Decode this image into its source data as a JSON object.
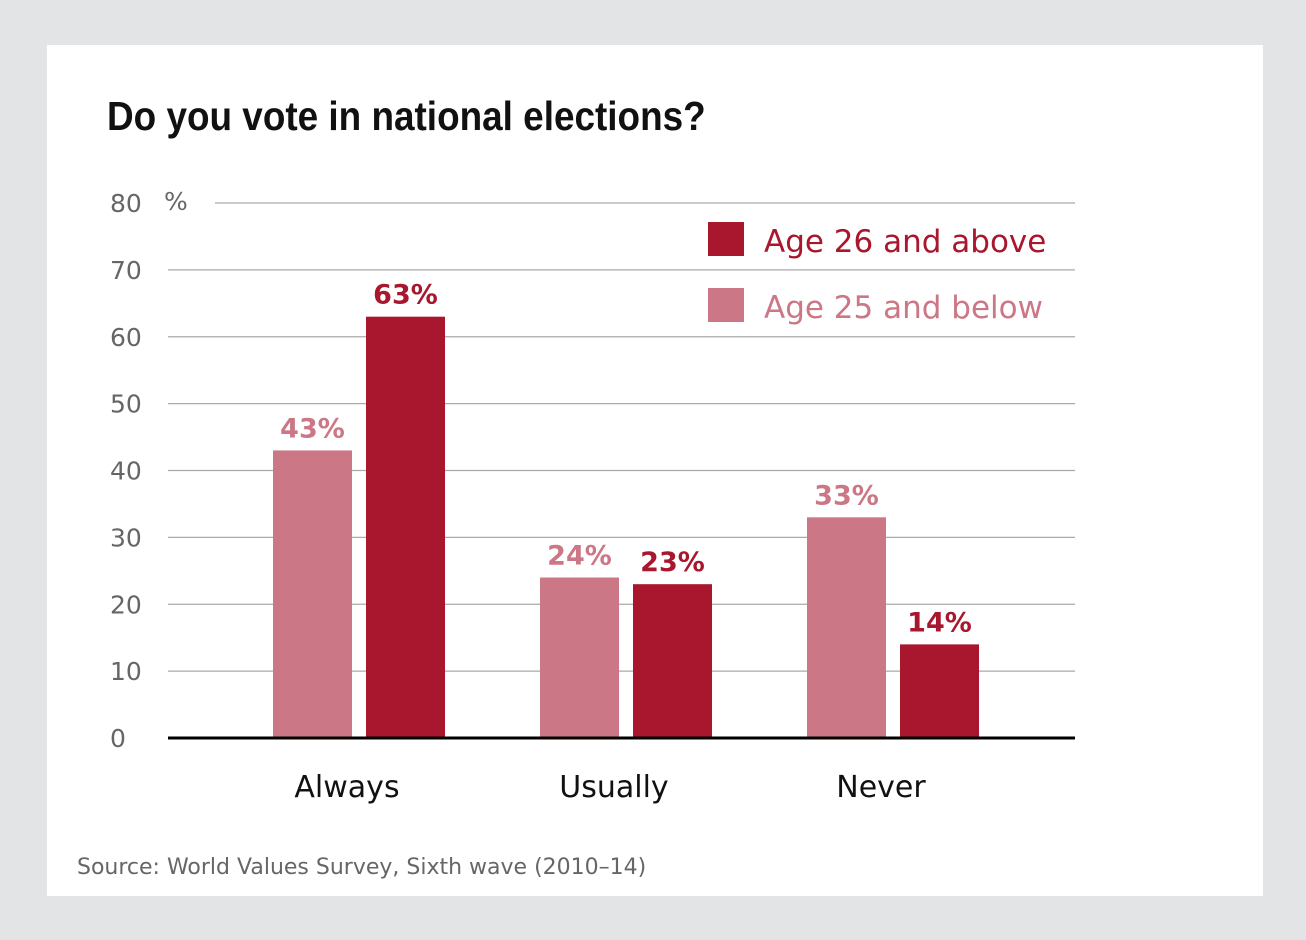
{
  "chart_data": {
    "type": "bar",
    "title": "Do you vote in national elections?",
    "source": "Source: World Values Survey, Sixth wave (2010–14)",
    "categories": [
      "Always",
      "Usually",
      "Never"
    ],
    "series": [
      {
        "name": "Age 25 and below",
        "values": [
          43,
          24,
          33
        ],
        "labels": [
          "43%",
          "24%",
          "33%"
        ],
        "color": "#cc7785"
      },
      {
        "name": "Age 26 and above",
        "values": [
          63,
          23,
          14
        ],
        "labels": [
          "63%",
          "23%",
          "14%"
        ],
        "color": "#a8172d"
      }
    ],
    "ylim": [
      0,
      80
    ],
    "yticks": [
      0,
      10,
      20,
      30,
      40,
      50,
      60,
      70,
      80
    ],
    "ytick_labels": [
      "0",
      "10",
      "20",
      "30",
      "40",
      "50",
      "60",
      "70",
      "80"
    ],
    "yunit": "%",
    "legend_order": [
      "Age 26 and above",
      "Age 25 and below"
    ],
    "legend_position": "top-right",
    "grid": true,
    "colors": {
      "gridline": "#aaaaaa",
      "baseline": "#000000",
      "background": "#e3e4e6",
      "panel": "#ffffff"
    }
  }
}
